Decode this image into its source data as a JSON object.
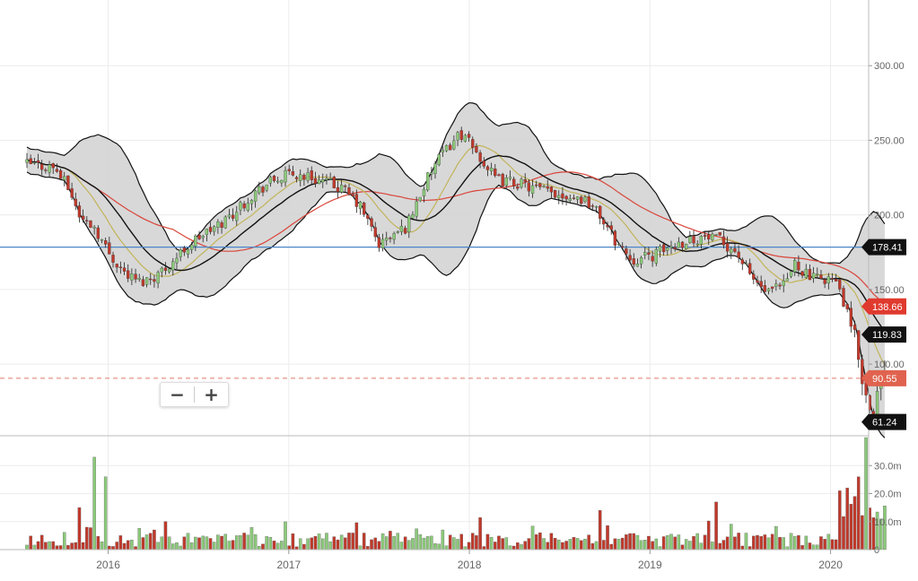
{
  "chart_data": [
    {
      "type": "candlestick",
      "panel": "price",
      "x_ticks": [
        "2016",
        "2017",
        "2018",
        "2019",
        "2020"
      ],
      "y_ticks": [
        "300.00",
        "250.00",
        "200.00",
        "150.00",
        "100.00"
      ],
      "ylim": [
        52,
        344
      ],
      "xlim": [
        2015.55,
        2020.36
      ],
      "grid": true,
      "overlays": [
        "bollinger_bands",
        "moving_average_fast",
        "moving_average_slow",
        "horizontal_line",
        "last_price_dashed_line"
      ],
      "horizontal_line_value": 178.41,
      "last_price": 90.55,
      "axis_badges": [
        {
          "label": "178.41",
          "value": 178.41,
          "color": "#111111"
        },
        {
          "label": "138.66",
          "value": 138.66,
          "color": "#e03a2f"
        },
        {
          "label": "119.83",
          "value": 119.83,
          "color": "#111111"
        },
        {
          "label": "90.55",
          "value": 90.55,
          "color": "#e0634f"
        },
        {
          "label": "61.24",
          "value": 61.24,
          "color": "#111111"
        }
      ],
      "price_path": [
        [
          2015.55,
          234
        ],
        [
          2015.7,
          232
        ],
        [
          2015.78,
          218
        ],
        [
          2015.85,
          197
        ],
        [
          2015.92,
          193
        ],
        [
          2016.0,
          175
        ],
        [
          2016.1,
          160
        ],
        [
          2016.18,
          155
        ],
        [
          2016.27,
          160
        ],
        [
          2016.35,
          168
        ],
        [
          2016.43,
          178
        ],
        [
          2016.5,
          185
        ],
        [
          2016.6,
          192
        ],
        [
          2016.7,
          202
        ],
        [
          2016.8,
          214
        ],
        [
          2016.9,
          222
        ],
        [
          2017.0,
          227
        ],
        [
          2017.1,
          226
        ],
        [
          2017.2,
          222
        ],
        [
          2017.3,
          217
        ],
        [
          2017.4,
          205
        ],
        [
          2017.5,
          180
        ],
        [
          2017.55,
          184
        ],
        [
          2017.65,
          192
        ],
        [
          2017.72,
          212
        ],
        [
          2017.8,
          232
        ],
        [
          2017.9,
          248
        ],
        [
          2017.95,
          255
        ],
        [
          2018.05,
          240
        ],
        [
          2018.15,
          223
        ],
        [
          2018.25,
          222
        ],
        [
          2018.35,
          218
        ],
        [
          2018.45,
          215
        ],
        [
          2018.55,
          213
        ],
        [
          2018.65,
          210
        ],
        [
          2018.72,
          200
        ],
        [
          2018.8,
          184
        ],
        [
          2018.9,
          170
        ],
        [
          2019.0,
          172
        ],
        [
          2019.1,
          178
        ],
        [
          2019.2,
          183
        ],
        [
          2019.3,
          185
        ],
        [
          2019.4,
          182
        ],
        [
          2019.48,
          175
        ],
        [
          2019.55,
          160
        ],
        [
          2019.65,
          147
        ],
        [
          2019.75,
          153
        ],
        [
          2019.8,
          168
        ],
        [
          2019.9,
          157
        ],
        [
          2020.0,
          158
        ],
        [
          2020.05,
          150
        ],
        [
          2020.1,
          130
        ],
        [
          2020.15,
          110
        ],
        [
          2020.2,
          75
        ],
        [
          2020.24,
          70
        ],
        [
          2020.28,
          87
        ],
        [
          2020.3,
          90.55
        ]
      ]
    },
    {
      "type": "bar",
      "panel": "volume",
      "y_ticks": [
        "30.0m",
        "20.0m",
        "10.0m",
        "0"
      ],
      "ylim": [
        0,
        40
      ],
      "units": "m",
      "colors": {
        "up": "#8cc97a",
        "down": "#c0392b"
      },
      "spikes": [
        {
          "x": 2015.92,
          "value": 33,
          "dir": "up"
        },
        {
          "x": 2015.98,
          "value": 26,
          "dir": "up"
        },
        {
          "x": 2015.85,
          "value": 15,
          "dir": "down"
        },
        {
          "x": 2018.72,
          "value": 14,
          "dir": "down"
        },
        {
          "x": 2019.36,
          "value": 17,
          "dir": "down"
        },
        {
          "x": 2020.05,
          "value": 21,
          "dir": "down"
        },
        {
          "x": 2020.09,
          "value": 22,
          "dir": "down"
        },
        {
          "x": 2020.13,
          "value": 19,
          "dir": "down"
        },
        {
          "x": 2020.16,
          "value": 26,
          "dir": "down"
        },
        {
          "x": 2020.2,
          "value": 40,
          "dir": "up"
        }
      ]
    }
  ],
  "theme": {
    "band_fill": "#d4d4d4",
    "band_line": "#111111",
    "ma_fast": "#c2b45a",
    "ma_slow": "#d9453a",
    "hline": "#4a86c8",
    "dash": "#e07a6a",
    "up": "#8cc97a",
    "down": "#c0392b",
    "grid": "#ececec"
  },
  "zoom": {
    "minus_label": "−",
    "plus_label": "+"
  }
}
